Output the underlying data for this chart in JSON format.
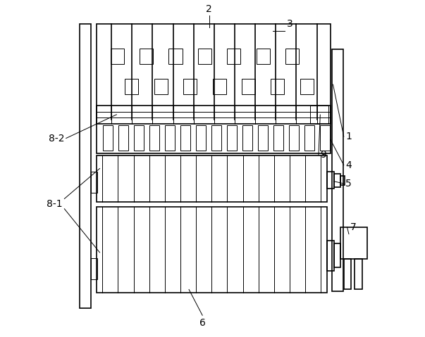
{
  "bg_color": "#ffffff",
  "line_color": "#000000",
  "lw": 1.2,
  "lw_thin": 0.7,
  "fig_width": 6.03,
  "fig_height": 4.79,
  "labels": {
    "1": [
      0.895,
      0.595,
      "1"
    ],
    "2": [
      0.49,
      0.96,
      "2"
    ],
    "3": [
      0.72,
      0.915,
      "3"
    ],
    "4": [
      0.895,
      0.51,
      "4"
    ],
    "5": [
      0.895,
      0.455,
      "5"
    ],
    "6": [
      0.47,
      0.055,
      "6"
    ],
    "7": [
      0.91,
      0.31,
      "7"
    ],
    "8-1": [
      0.055,
      0.395,
      "8-1"
    ],
    "8-2": [
      0.06,
      0.59,
      "8-2"
    ],
    "9": [
      0.82,
      0.54,
      "9"
    ]
  }
}
